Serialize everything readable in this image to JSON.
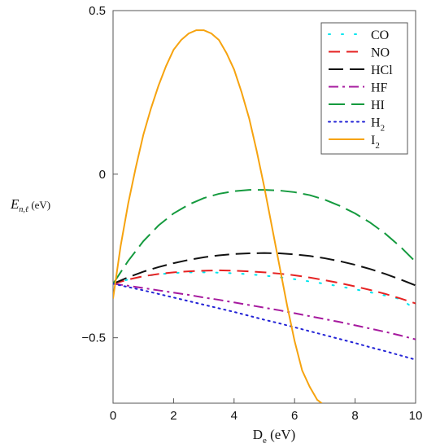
{
  "chart_data": {
    "type": "line",
    "title": "",
    "xlabel": "D",
    "xlabel_sub": "e",
    "xlabel_unit": " (eV)",
    "ylabel": "E",
    "ylabel_sub": "n,ℓ",
    "ylabel_unit": " (eV)",
    "xlim": [
      0,
      10
    ],
    "ylim": [
      -0.7,
      0.5
    ],
    "xticks": [
      0,
      2,
      4,
      6,
      8,
      10
    ],
    "xtick_labels": [
      "0",
      "2",
      "4",
      "6",
      "8",
      "10"
    ],
    "yticks": [
      -0.5,
      0,
      0.5
    ],
    "ytick_labels": [
      "−0.5",
      "0",
      "0.5"
    ],
    "grid": false,
    "legend_position": "top-right",
    "series": [
      {
        "name": "CO",
        "name_main": "CO",
        "name_sub": "",
        "color": "#00e5ee",
        "dash": "2 14",
        "x": [
          0,
          0.5,
          1,
          1.5,
          2,
          2.5,
          3,
          3.5,
          4,
          4.5,
          5,
          5.5,
          6,
          6.5,
          7,
          7.5,
          8,
          8.5,
          9,
          9.5,
          10
        ],
        "y": [
          -0.335,
          -0.322,
          -0.312,
          -0.306,
          -0.302,
          -0.3,
          -0.3,
          -0.301,
          -0.303,
          -0.306,
          -0.31,
          -0.315,
          -0.321,
          -0.328,
          -0.335,
          -0.343,
          -0.352,
          -0.361,
          -0.371,
          -0.382,
          -0.413
        ]
      },
      {
        "name": "NO",
        "name_main": "NO",
        "name_sub": "",
        "color": "#e52222",
        "dash": "14 8",
        "x": [
          0,
          0.5,
          1,
          1.5,
          2,
          2.5,
          3,
          3.5,
          4,
          4.5,
          5,
          5.5,
          6,
          6.5,
          7,
          7.5,
          8,
          8.5,
          9,
          9.5,
          10
        ],
        "y": [
          -0.335,
          -0.322,
          -0.312,
          -0.305,
          -0.3,
          -0.297,
          -0.295,
          -0.294,
          -0.295,
          -0.297,
          -0.3,
          -0.304,
          -0.309,
          -0.316,
          -0.324,
          -0.333,
          -0.343,
          -0.354,
          -0.366,
          -0.38,
          -0.395
        ]
      },
      {
        "name": "HCl",
        "name_main": "HCl",
        "name_sub": "",
        "color": "#111111",
        "dash": "18 8",
        "x": [
          0,
          0.5,
          1,
          1.5,
          2,
          2.5,
          3,
          3.5,
          4,
          4.5,
          5,
          5.5,
          6,
          6.5,
          7,
          7.5,
          8,
          8.5,
          9,
          9.5,
          10
        ],
        "y": [
          -0.335,
          -0.315,
          -0.298,
          -0.284,
          -0.272,
          -0.262,
          -0.254,
          -0.248,
          -0.244,
          -0.242,
          -0.241,
          -0.242,
          -0.245,
          -0.25,
          -0.257,
          -0.266,
          -0.277,
          -0.29,
          -0.305,
          -0.322,
          -0.34
        ]
      },
      {
        "name": "HF",
        "name_main": "HF",
        "name_sub": "",
        "color": "#a6199e",
        "dash": "12 5 3 5",
        "x": [
          0,
          0.5,
          1,
          1.5,
          2,
          2.5,
          3,
          3.5,
          4,
          4.5,
          5,
          5.5,
          6,
          6.5,
          7,
          7.5,
          8,
          8.5,
          9,
          9.5,
          10
        ],
        "y": [
          -0.335,
          -0.341,
          -0.348,
          -0.355,
          -0.362,
          -0.369,
          -0.377,
          -0.384,
          -0.392,
          -0.4,
          -0.408,
          -0.416,
          -0.425,
          -0.434,
          -0.443,
          -0.452,
          -0.462,
          -0.472,
          -0.482,
          -0.493,
          -0.505
        ]
      },
      {
        "name": "HI",
        "name_main": "HI",
        "name_sub": "",
        "color": "#149a3e",
        "dash": "20 8",
        "x": [
          0,
          0.5,
          1,
          1.5,
          2,
          2.5,
          3,
          3.5,
          4,
          4.5,
          5,
          5.5,
          6,
          6.5,
          7,
          7.5,
          8,
          8.5,
          9,
          9.5,
          10
        ],
        "y": [
          -0.335,
          -0.265,
          -0.205,
          -0.157,
          -0.12,
          -0.093,
          -0.073,
          -0.06,
          -0.052,
          -0.048,
          -0.048,
          -0.05,
          -0.055,
          -0.064,
          -0.078,
          -0.097,
          -0.12,
          -0.148,
          -0.182,
          -0.222,
          -0.268
        ]
      },
      {
        "name": "H₂",
        "name_main": "H",
        "name_sub": "2",
        "color": "#2323d6",
        "dash": "2 5",
        "x": [
          0,
          0.5,
          1,
          1.5,
          2,
          2.5,
          3,
          3.5,
          4,
          4.5,
          5,
          5.5,
          6,
          6.5,
          7,
          7.5,
          8,
          8.5,
          9,
          9.5,
          10
        ],
        "y": [
          -0.335,
          -0.345,
          -0.355,
          -0.366,
          -0.377,
          -0.388,
          -0.399,
          -0.41,
          -0.421,
          -0.433,
          -0.445,
          -0.456,
          -0.468,
          -0.48,
          -0.492,
          -0.504,
          -0.516,
          -0.529,
          -0.541,
          -0.554,
          -0.567
        ]
      },
      {
        "name": "I₂",
        "name_main": "I",
        "name_sub": "2",
        "color": "#f6a30f",
        "dash": "",
        "x": [
          0,
          0.25,
          0.5,
          0.75,
          1,
          1.25,
          1.5,
          1.75,
          2,
          2.25,
          2.5,
          2.75,
          3,
          3.25,
          3.5,
          3.75,
          4,
          4.25,
          4.5,
          4.75,
          5,
          5.25,
          5.5,
          5.75,
          6,
          6.25,
          6.5,
          6.75,
          6.9
        ],
        "y": [
          -0.38,
          -0.22,
          -0.09,
          0.02,
          0.12,
          0.2,
          0.27,
          0.33,
          0.38,
          0.41,
          0.43,
          0.44,
          0.44,
          0.43,
          0.41,
          0.37,
          0.32,
          0.25,
          0.17,
          0.07,
          -0.04,
          -0.16,
          -0.28,
          -0.4,
          -0.51,
          -0.6,
          -0.65,
          -0.69,
          -0.7
        ]
      }
    ]
  }
}
